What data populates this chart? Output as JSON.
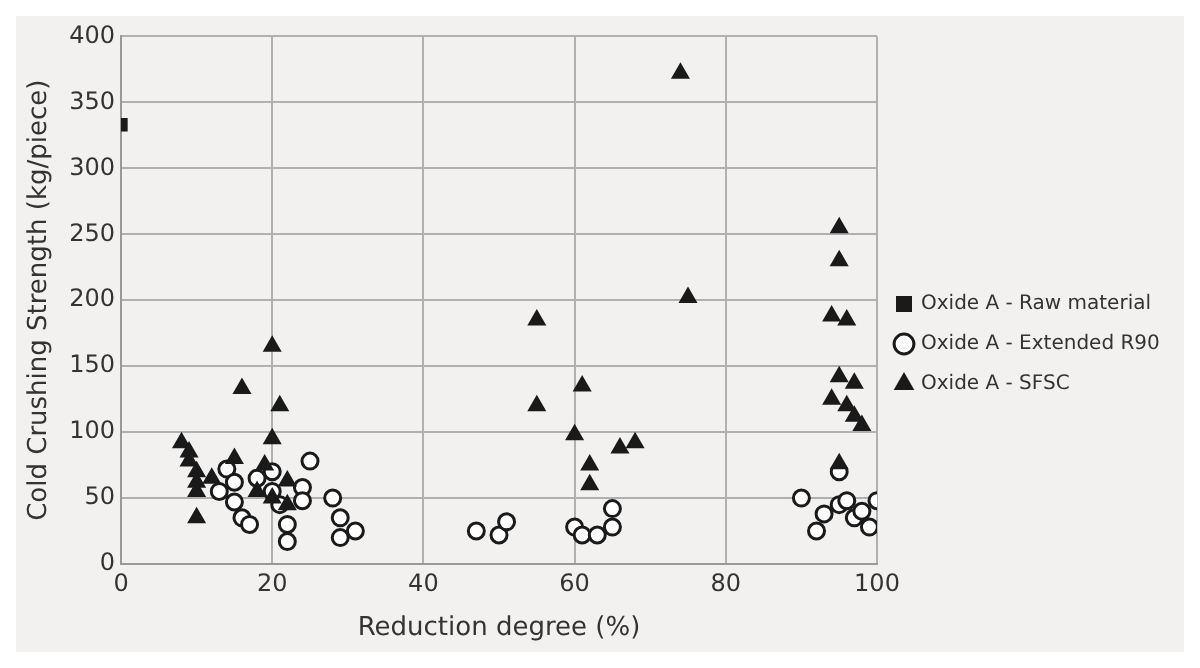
{
  "chart_data": {
    "type": "scatter",
    "xlabel": "Reduction degree (%)",
    "ylabel": "Cold Crushing Strength (kg/piece)",
    "xlim": [
      0,
      100
    ],
    "xticks": [
      0,
      20,
      40,
      60,
      80,
      100
    ],
    "ylim": [
      0,
      400
    ],
    "yticks": [
      0,
      50,
      100,
      150,
      200,
      250,
      300,
      350,
      400
    ],
    "grid": true,
    "legend": "right",
    "series": [
      {
        "name": "Oxide A - Raw material",
        "color": "#1a1a1a",
        "marker": "square",
        "x": [
          0
        ],
        "values": [
          333
        ]
      },
      {
        "name": "Oxide A - Extended R90",
        "color": "#1a1a1a",
        "marker": "circle",
        "x": [
          13,
          14,
          15,
          15,
          16,
          17,
          18,
          20,
          20,
          21,
          22,
          22,
          24,
          24,
          25,
          28,
          29,
          29,
          31,
          47,
          50,
          51,
          60,
          61,
          63,
          65,
          65,
          90,
          92,
          93,
          95,
          95,
          96,
          97,
          98,
          99,
          100
        ],
        "values": [
          55,
          72,
          62,
          47,
          35,
          30,
          65,
          55,
          70,
          45,
          30,
          17,
          58,
          48,
          78,
          50,
          35,
          20,
          25,
          25,
          22,
          32,
          28,
          22,
          22,
          28,
          42,
          50,
          25,
          38,
          45,
          70,
          48,
          35,
          40,
          28,
          48
        ]
      },
      {
        "name": "Oxide A - SFSC",
        "color": "#1a1a1a",
        "marker": "triangle",
        "x": [
          8,
          9,
          9,
          10,
          10,
          10,
          10,
          12,
          15,
          16,
          18,
          19,
          20,
          20,
          21,
          22,
          22,
          20,
          55,
          55,
          60,
          61,
          62,
          62,
          66,
          68,
          74,
          75,
          95,
          95,
          94,
          96,
          95,
          97,
          94,
          96,
          97,
          98,
          95
        ],
        "values": [
          92,
          85,
          78,
          70,
          62,
          55,
          35,
          65,
          80,
          133,
          55,
          75,
          165,
          95,
          120,
          45,
          63,
          50,
          185,
          120,
          98,
          135,
          75,
          60,
          88,
          92,
          372,
          202,
          255,
          230,
          188,
          185,
          142,
          137,
          125,
          120,
          112,
          105,
          76
        ]
      }
    ]
  }
}
